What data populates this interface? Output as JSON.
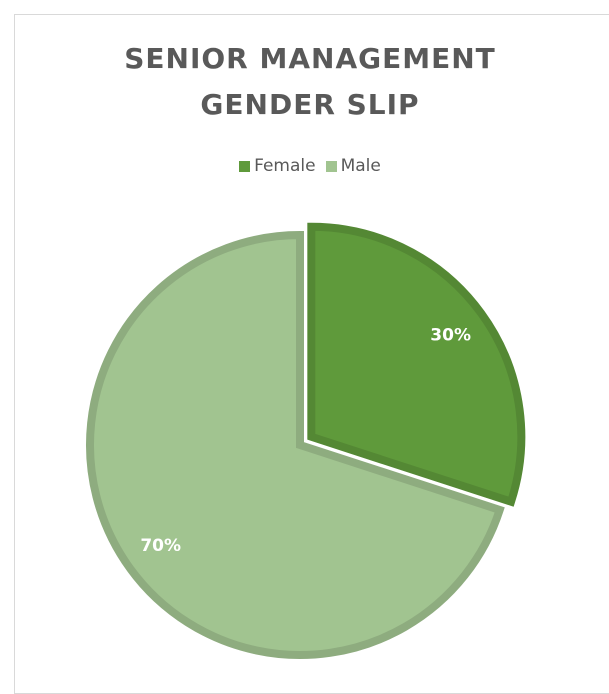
{
  "chart_data": {
    "type": "pie",
    "title": "SENIOR MANAGEMENT GENDER SLIP",
    "categories": [
      "Female",
      "Male"
    ],
    "values": [
      30,
      70
    ],
    "value_labels": [
      "30%",
      "70%"
    ],
    "colors": [
      "#5f9a3b",
      "#a1c490"
    ],
    "legend": "top"
  }
}
